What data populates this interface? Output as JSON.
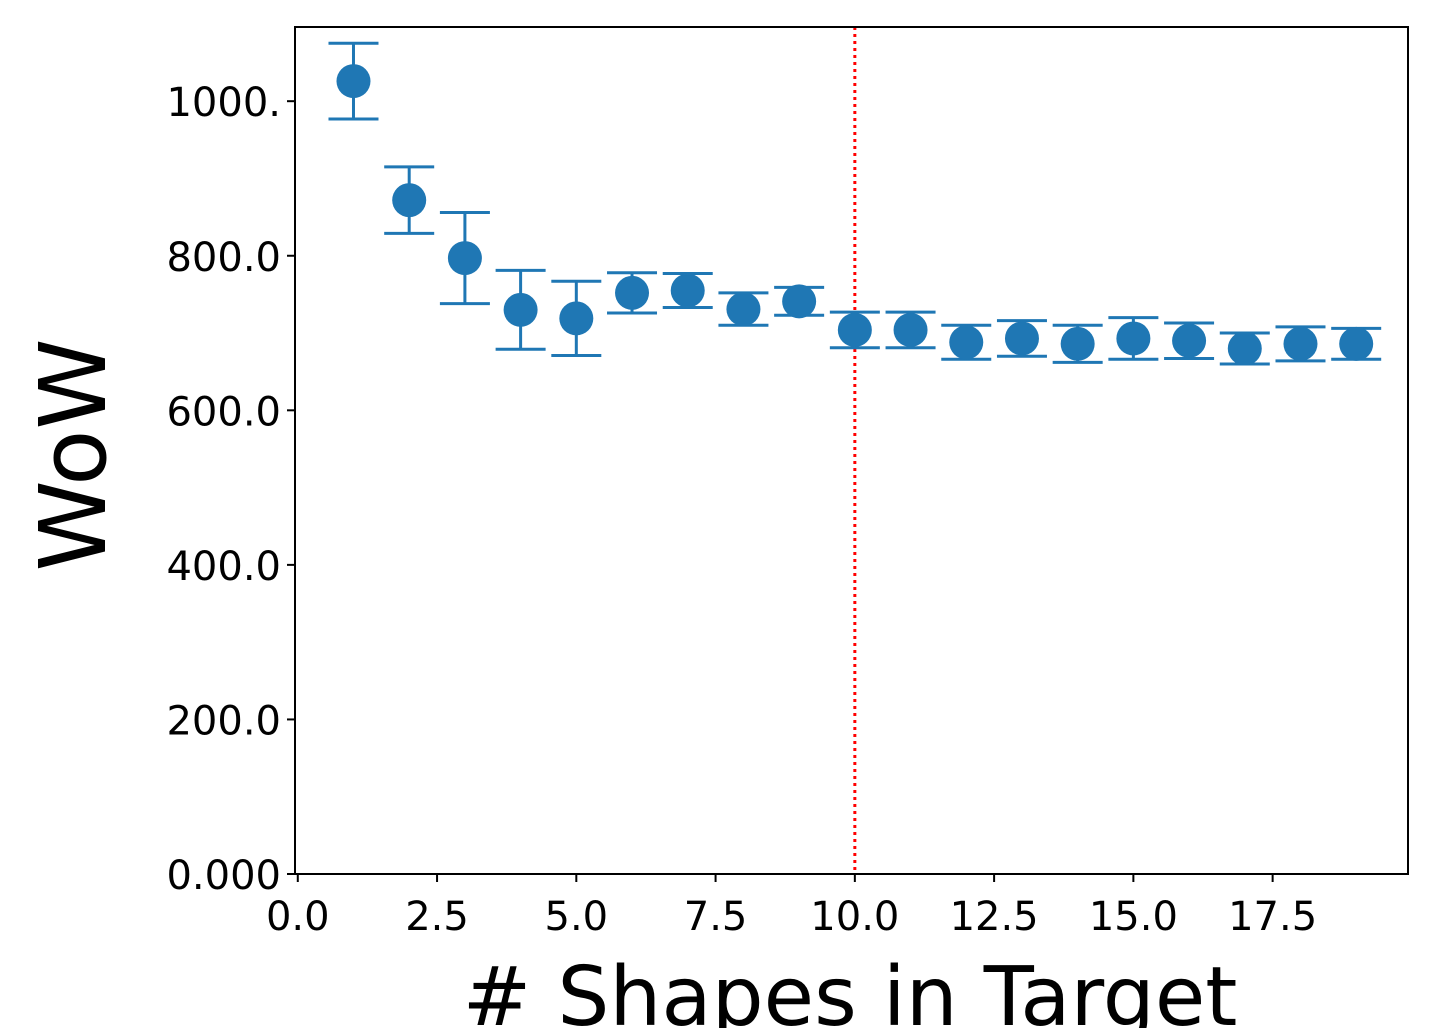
{
  "chart_data": {
    "type": "scatter",
    "xlabel": "# Shapes in Target",
    "ylabel": "WoW",
    "x": [
      1,
      2,
      3,
      4,
      5,
      6,
      7,
      8,
      9,
      10,
      11,
      12,
      13,
      14,
      15,
      16,
      17,
      18,
      19
    ],
    "series": [
      {
        "color": "#1f77b4",
        "values": [
          1026,
          872,
          797,
          730,
          719,
          752,
          755,
          731,
          741,
          704,
          704,
          688,
          693,
          686,
          693,
          690,
          680,
          686,
          686
        ],
        "errors": [
          49,
          43,
          59,
          51,
          48,
          26,
          22,
          21,
          18,
          23,
          23,
          22,
          23,
          24,
          27,
          23,
          20,
          22,
          20
        ]
      }
    ],
    "vline": {
      "x": 10,
      "color": "red"
    },
    "xlim": [
      -0.05,
      19.93
    ],
    "ylim": [
      0,
      1096
    ],
    "xticks": [
      {
        "value": 0,
        "label": "0.0"
      },
      2.5,
      {
        "value": 5,
        "label": "5.0"
      },
      7.5,
      {
        "value": 10,
        "label": "10.0"
      },
      12.5,
      {
        "value": 15,
        "label": "15.0"
      },
      17.5
    ],
    "yticks": [
      {
        "value": 0,
        "label": "0.000"
      },
      {
        "value": 200,
        "label": "200.0"
      },
      {
        "value": 400,
        "label": "400.0"
      },
      {
        "value": 600,
        "label": "600.0"
      },
      {
        "value": 800,
        "label": "800.0"
      },
      {
        "value": 1000,
        "label": "1000."
      }
    ]
  }
}
